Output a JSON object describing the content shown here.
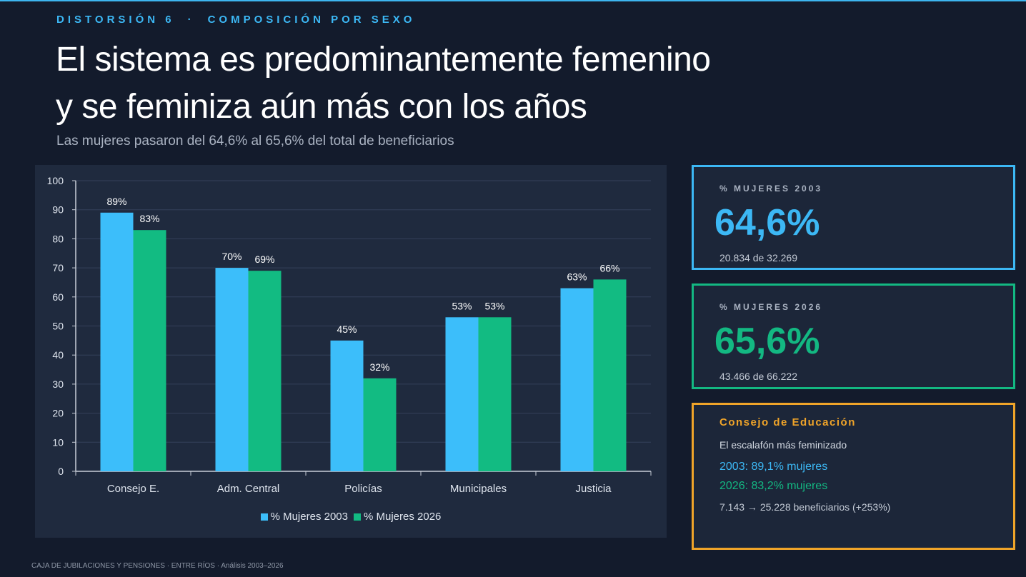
{
  "header": {
    "eyebrow_left": "DISTORSIÓN 6",
    "eyebrow_sep": "·",
    "eyebrow_right": "COMPOSICIÓN POR SEXO",
    "title_line1": "El sistema es predominantemente femenino",
    "title_line2": "y se feminiza aún más con los años",
    "subtitle": "Las mujeres pasaron del 64,6% al 65,6% del total de beneficiarios"
  },
  "chart_data": {
    "type": "bar",
    "categories": [
      "Consejo E.",
      "Adm. Central",
      "Policías",
      "Municipales",
      "Justicia"
    ],
    "series": [
      {
        "name": "% Mujeres 2003",
        "values": [
          89,
          70,
          45,
          53,
          63
        ],
        "labels": [
          "89%",
          "70%",
          "45%",
          "53%",
          "63%"
        ],
        "color": "#3cbefa"
      },
      {
        "name": "% Mujeres 2026",
        "values": [
          83,
          69,
          32,
          53,
          66
        ],
        "labels": [
          "83%",
          "69%",
          "32%",
          "53%",
          "66%"
        ],
        "color": "#12bb82"
      }
    ],
    "ylim": [
      0,
      100
    ],
    "yticks": [
      0,
      10,
      20,
      30,
      40,
      50,
      60,
      70,
      80,
      90,
      100
    ],
    "grid": true,
    "legend": "bottom-center",
    "title": "",
    "xlabel": "",
    "ylabel": ""
  },
  "kpis": {
    "mujeres_2003": {
      "label": "% MUJERES 2003",
      "value": "64,6%",
      "sub": "20.834 de 32.269",
      "color": "#3cb8f5"
    },
    "mujeres_2026": {
      "label": "% MUJERES 2026",
      "value": "65,6%",
      "sub": "43.466 de 66.222",
      "color": "#13b882"
    }
  },
  "education": {
    "title": "Consejo de Educación",
    "desc": "El escalafón más feminizado",
    "line_2003": "2003: 89,1% mujeres",
    "line_2026": "2026: 83,2% mujeres",
    "line_growth": "7.143 → 25.228 beneficiarios (+253%)"
  },
  "footer": {
    "text": "CAJA DE JUBILACIONES Y PENSIONES  ·  ENTRE RÍOS  ·  Análisis 2003–2026"
  }
}
